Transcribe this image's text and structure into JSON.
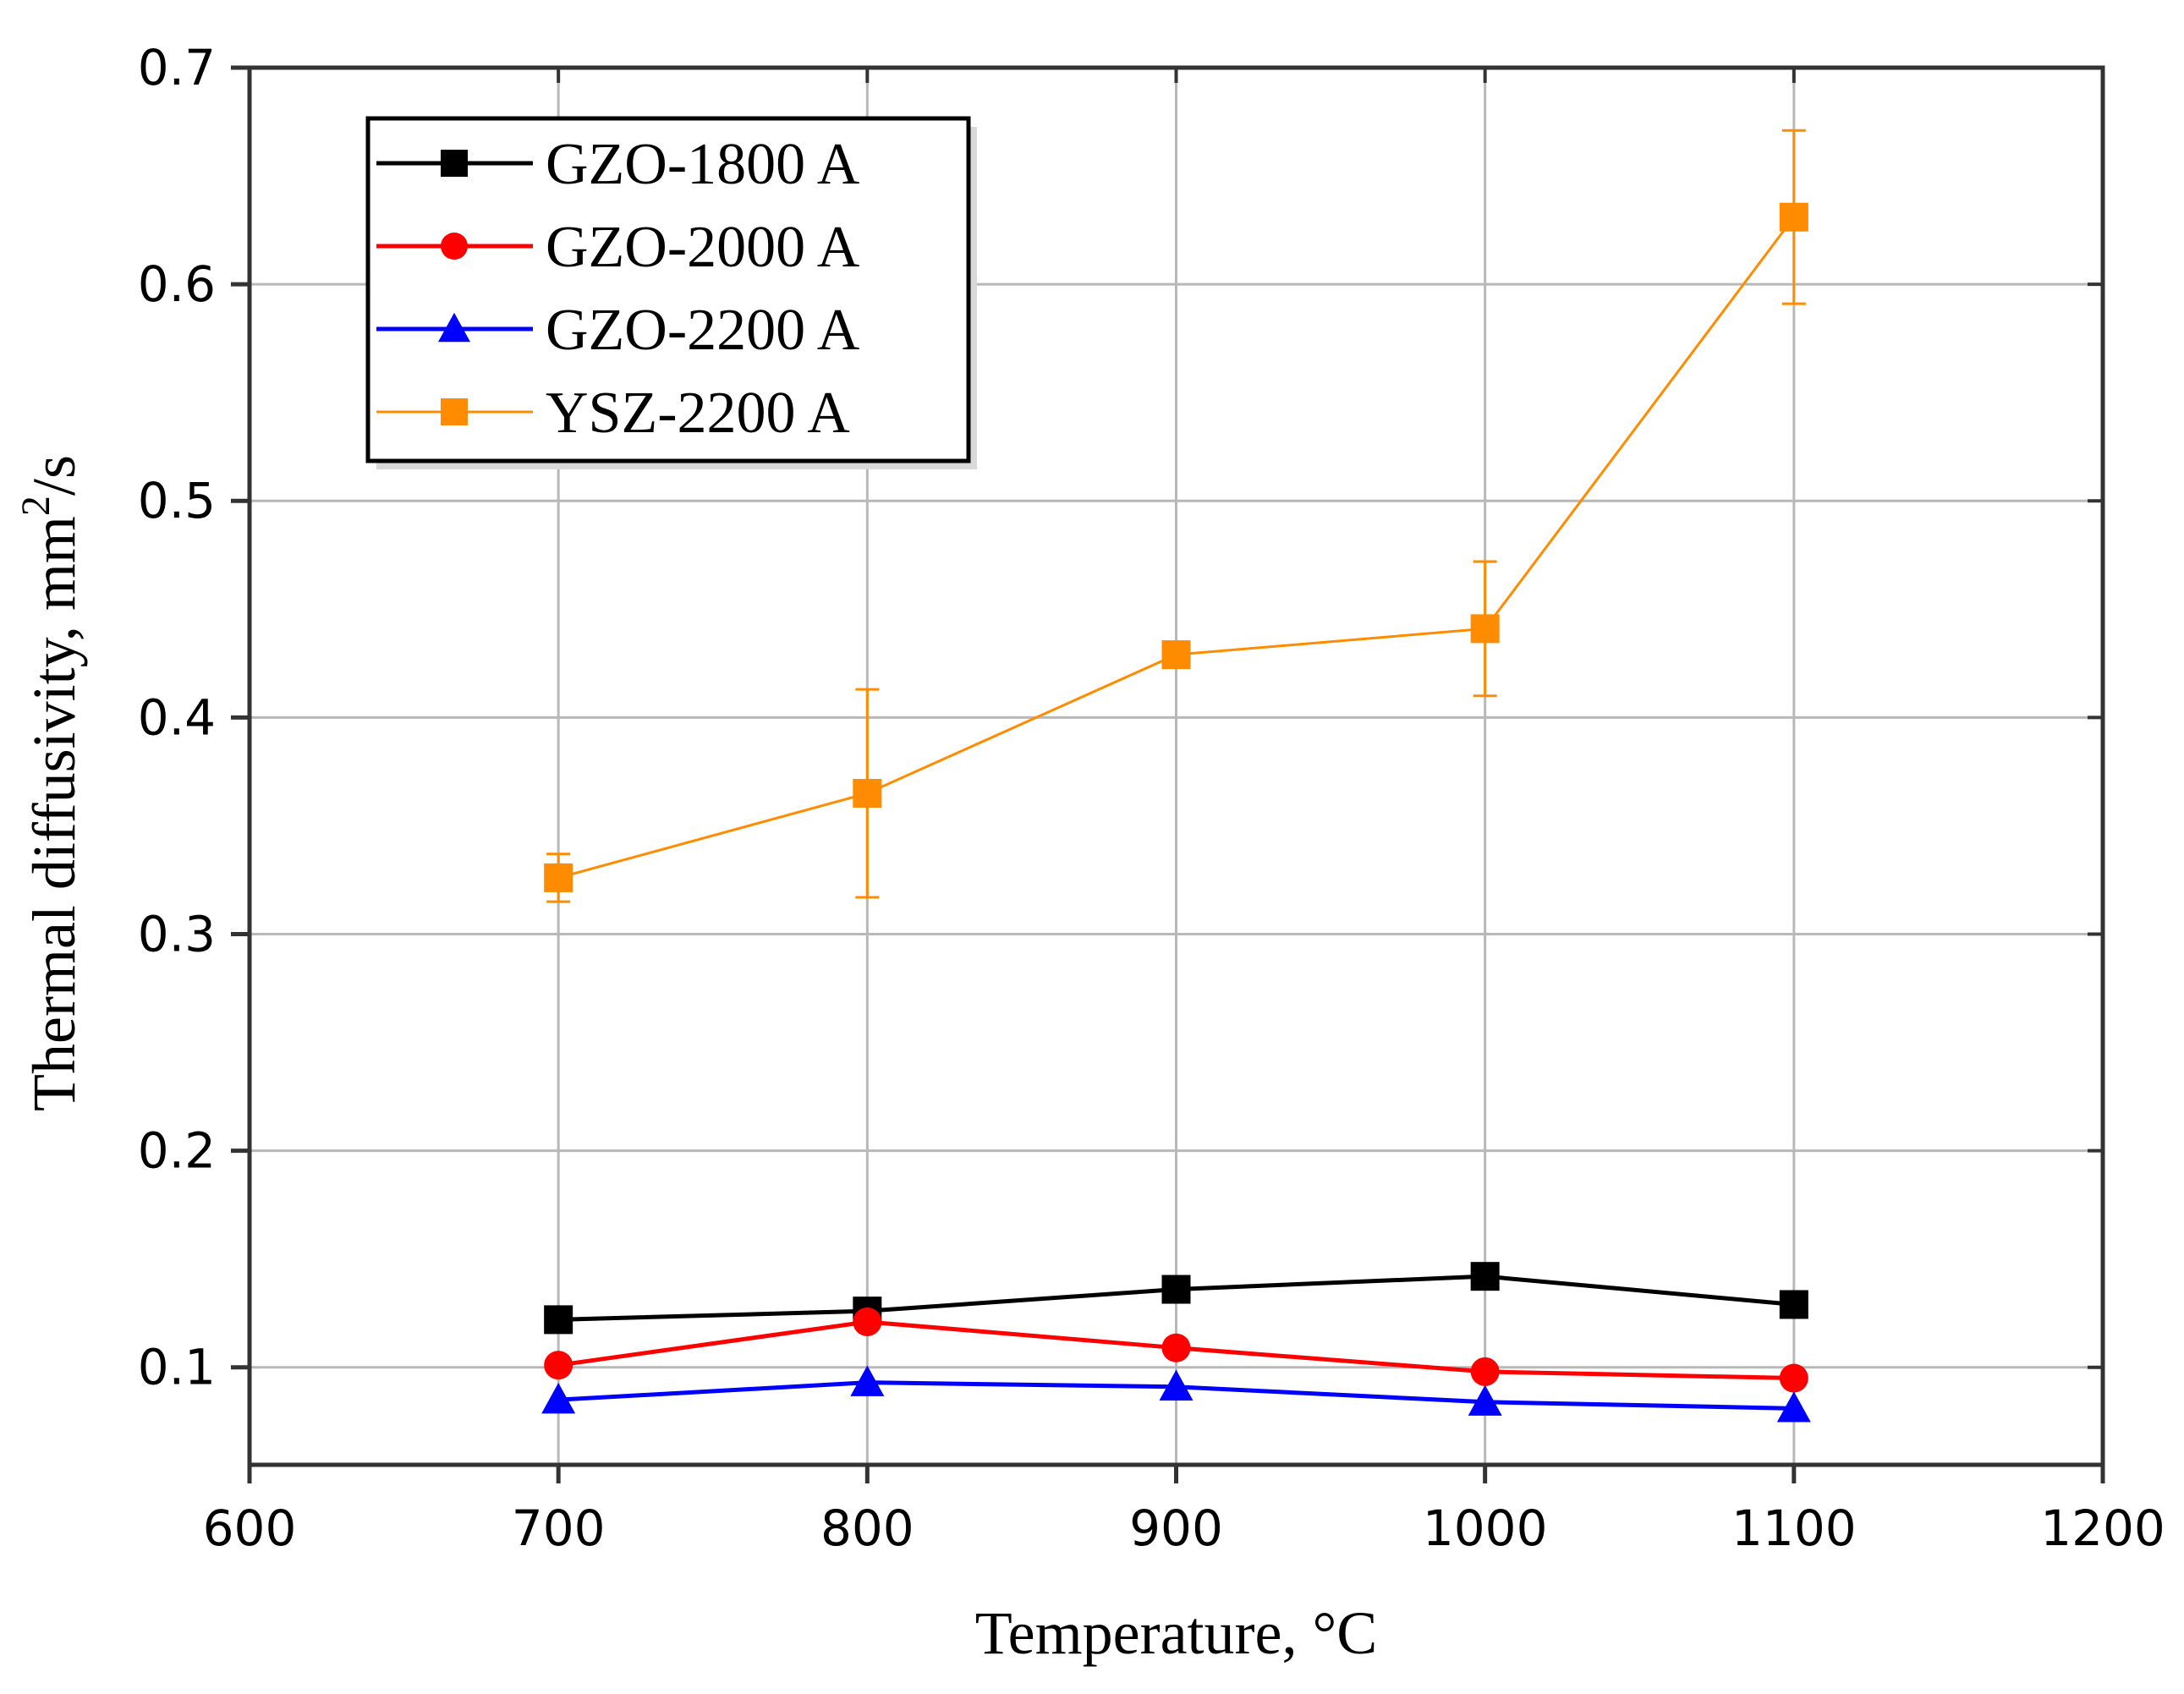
{
  "chart_data": {
    "type": "line",
    "title": "",
    "xlabel": "Temperature, °C",
    "ylabel_main": "Thermal diffusivity, mm",
    "ylabel_sup": "2",
    "ylabel_tail": "/s",
    "xlim": [
      600,
      1200
    ],
    "ylim": [
      0.055,
      0.7
    ],
    "xticks": [
      600,
      700,
      800,
      900,
      1000,
      1100,
      1200
    ],
    "yticks": [
      0.1,
      0.2,
      0.3,
      0.4,
      0.5,
      0.6,
      0.7
    ],
    "grid": true,
    "legend_position": "top-left",
    "series": [
      {
        "name": "GZO-1800 A",
        "color": "#000000",
        "marker": "square",
        "x": [
          700,
          800,
          900,
          1000,
          1100
        ],
        "y": [
          0.122,
          0.126,
          0.136,
          0.142,
          0.129
        ],
        "err": null
      },
      {
        "name": "GZO-2000 A",
        "color": "#ff0000",
        "marker": "circle",
        "x": [
          700,
          800,
          900,
          1000,
          1100
        ],
        "y": [
          0.101,
          0.121,
          0.109,
          0.098,
          0.095
        ],
        "err": null
      },
      {
        "name": "GZO-2200 A",
        "color": "#0000ff",
        "marker": "triangle",
        "x": [
          700,
          800,
          900,
          1000,
          1100
        ],
        "y": [
          0.085,
          0.093,
          0.091,
          0.084,
          0.081
        ],
        "err": null
      },
      {
        "name": "YSZ-2200 A",
        "color": "#ff8c00",
        "marker": "square",
        "x": [
          700,
          800,
          900,
          1000,
          1100
        ],
        "y": [
          0.326,
          0.365,
          0.429,
          0.441,
          0.631
        ],
        "err": [
          0.011,
          0.048,
          0.0,
          0.031,
          0.04
        ]
      }
    ]
  }
}
